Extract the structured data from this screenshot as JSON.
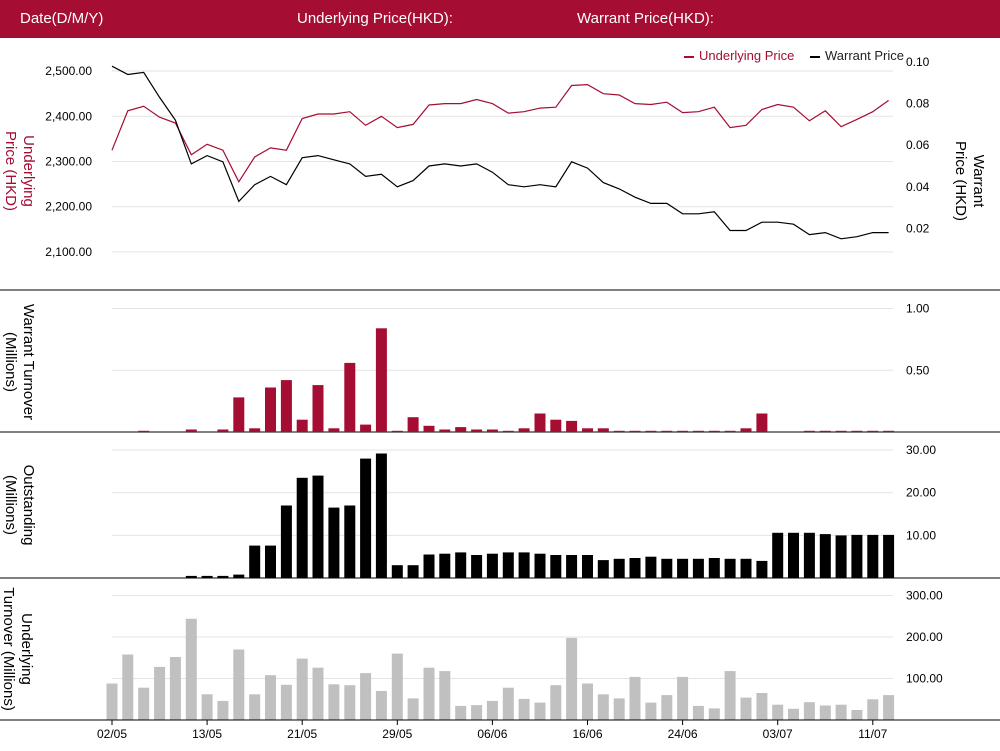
{
  "header": {
    "date_label": "Date(D/M/Y)",
    "underlying_label": "Underlying Price(HKD):",
    "warrant_label": "Warrant Price(HKD):"
  },
  "legend": {
    "underlying": "Underlying Price",
    "warrant": "Warrant Price"
  },
  "colors": {
    "accent": "#a50d32",
    "warrant": "#000000",
    "outstanding": "#000000",
    "underlying_turnover": "#c0c0c0",
    "grid": "#e3e3e3"
  },
  "x_tick_labels": [
    "02/05",
    "13/05",
    "21/05",
    "29/05",
    "06/06",
    "16/06",
    "24/06",
    "03/07",
    "11/07"
  ],
  "x_tick_indices": [
    0,
    6,
    12,
    18,
    24,
    30,
    36,
    42,
    48
  ],
  "chart_data": [
    {
      "type": "line",
      "title": "",
      "ylabel": "Underlying Price (HKD)",
      "ylabel2": "Warrant Price (HKD)",
      "ylim": [
        2060,
        2520
      ],
      "ylim2": [
        0.0,
        0.1
      ],
      "y_ticks": [
        "2,100.00",
        "2,200.00",
        "2,300.00",
        "2,400.00",
        "2,500.00"
      ],
      "y2_ticks": [
        "0.02",
        "0.04",
        "0.06",
        "0.08",
        "0.10"
      ],
      "series": [
        {
          "name": "Underlying Price",
          "axis": "left",
          "values": [
            2325,
            2412,
            2422,
            2398,
            2385,
            2315,
            2338,
            2325,
            2255,
            2310,
            2330,
            2325,
            2395,
            2405,
            2405,
            2410,
            2380,
            2400,
            2375,
            2382,
            2425,
            2428,
            2428,
            2437,
            2428,
            2407,
            2410,
            2418,
            2420,
            2468,
            2470,
            2450,
            2447,
            2428,
            2426,
            2431,
            2408,
            2410,
            2420,
            2375,
            2380,
            2415,
            2426,
            2420,
            2390,
            2412,
            2377,
            2393,
            2410,
            2435
          ]
        },
        {
          "name": "Warrant Price",
          "axis": "right",
          "values": [
            0.098,
            0.094,
            0.095,
            0.083,
            0.072,
            0.051,
            0.055,
            0.052,
            0.033,
            0.041,
            0.045,
            0.041,
            0.054,
            0.055,
            0.053,
            0.051,
            0.045,
            0.046,
            0.04,
            0.043,
            0.05,
            0.051,
            0.05,
            0.051,
            0.047,
            0.041,
            0.04,
            0.041,
            0.04,
            0.052,
            0.049,
            0.042,
            0.039,
            0.035,
            0.032,
            0.032,
            0.027,
            0.027,
            0.028,
            0.019,
            0.019,
            0.023,
            0.023,
            0.022,
            0.017,
            0.018,
            0.015,
            0.016,
            0.018,
            0.018
          ]
        }
      ]
    },
    {
      "type": "bar",
      "title": "",
      "ylabel": "Warrant Turnover (Millions)",
      "ylim": [
        0,
        1.15
      ],
      "y_ticks": [
        "0.50",
        "1.00"
      ],
      "values": [
        0,
        0,
        0.01,
        0,
        0,
        0.02,
        0,
        0.02,
        0.28,
        0.03,
        0.36,
        0.42,
        0.1,
        0.38,
        0.03,
        0.56,
        0.06,
        0.84,
        0.01,
        0.12,
        0.05,
        0.02,
        0.04,
        0.02,
        0.02,
        0.01,
        0.03,
        0.15,
        0.1,
        0.09,
        0.03,
        0.03,
        0.01,
        0.01,
        0.01,
        0.01,
        0.01,
        0.01,
        0.01,
        0.01,
        0.03,
        0.15,
        0,
        0,
        0.01,
        0.01,
        0.01,
        0.01,
        0.01,
        0.01
      ]
    },
    {
      "type": "bar",
      "title": "",
      "ylabel": "Outstanding (Millions)",
      "ylim": [
        0,
        34
      ],
      "y_ticks": [
        "10.00",
        "20.00",
        "30.00"
      ],
      "values": [
        0,
        0,
        0,
        0,
        0,
        0.5,
        0.5,
        0.5,
        0.8,
        7.6,
        7.6,
        17,
        23.5,
        24,
        16.5,
        17,
        28,
        29.2,
        3,
        3,
        5.5,
        5.7,
        6,
        5.4,
        5.7,
        6,
        6,
        5.7,
        5.4,
        5.4,
        5.4,
        4.2,
        4.5,
        4.7,
        5,
        4.5,
        4.5,
        4.5,
        4.7,
        4.5,
        4.5,
        4,
        10.6,
        10.6,
        10.6,
        10.3,
        10,
        10.1,
        10.1,
        10.1
      ]
    },
    {
      "type": "bar",
      "title": "",
      "ylabel": "Underlying Turnover (Millions)",
      "ylim": [
        0,
        340
      ],
      "y_ticks": [
        "100.00",
        "200.00",
        "300.00"
      ],
      "values": [
        88,
        158,
        78,
        128,
        152,
        244,
        62,
        46,
        170,
        62,
        108,
        85,
        148,
        126,
        86,
        84,
        113,
        70,
        160,
        52,
        126,
        118,
        34,
        36,
        46,
        78,
        51,
        42,
        84,
        198,
        88,
        62,
        52,
        104,
        42,
        60,
        104,
        34,
        28,
        118,
        54,
        65,
        37,
        27,
        43,
        35,
        37,
        24,
        50,
        60
      ]
    }
  ]
}
